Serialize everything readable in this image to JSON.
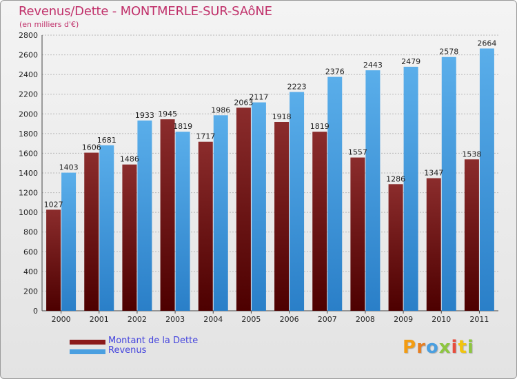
{
  "header": {
    "title": "Revenus/Dette - MONTMERLE-SUR-SAôNE",
    "subtitle": "(en milliers d'€)"
  },
  "legend": {
    "items": [
      {
        "label": "Montant de la Dette",
        "color": "#8b1a1a"
      },
      {
        "label": "Revenus",
        "color": "#4a9fe0"
      }
    ]
  },
  "logo": {
    "text": "Proxiti",
    "letter_colors": [
      "#f39c12",
      "#e67e22",
      "#4a9fe0",
      "#8dc63f",
      "#e74c3c",
      "#f1c40f",
      "#8dc63f"
    ]
  },
  "colors": {
    "dette_top": "#8b2c2c",
    "dette_bottom": "#4d0000",
    "revenus_top": "#5aaeea",
    "revenus_bottom": "#2a7fc8",
    "grid": "#b8b8b8",
    "axis_text": "#222222"
  },
  "chart_data": {
    "type": "bar",
    "title": "Revenus/Dette - MONTMERLE-SUR-SAôNE",
    "subtitle": "(en milliers d'€)",
    "xlabel": "",
    "ylabel": "",
    "ylim": [
      0,
      2800
    ],
    "ytick_step": 200,
    "grid": true,
    "legend_position": "bottom-left",
    "categories": [
      "2000",
      "2001",
      "2002",
      "2003",
      "2004",
      "2005",
      "2006",
      "2007",
      "2008",
      "2009",
      "2010",
      "2011"
    ],
    "series": [
      {
        "name": "Montant de la Dette",
        "values": [
          1027,
          1606,
          1486,
          1945,
          1717,
          2063,
          1918,
          1819,
          1557,
          1286,
          1347,
          1538
        ]
      },
      {
        "name": "Revenus",
        "values": [
          1403,
          1681,
          1933,
          1819,
          1986,
          2117,
          2223,
          2376,
          2443,
          2479,
          2578,
          2664
        ]
      }
    ]
  }
}
